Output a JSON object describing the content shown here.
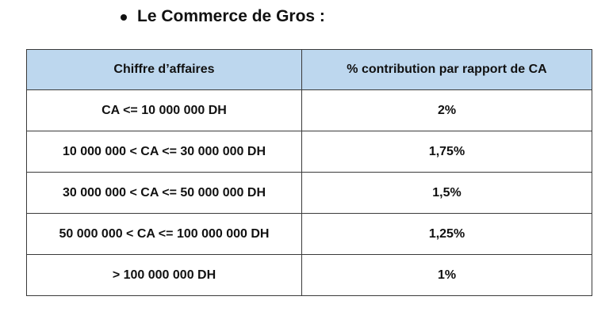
{
  "heading": "Le Commerce de Gros :",
  "table": {
    "headers": [
      "Chiffre d’affaires",
      "% contribution par rapport de CA"
    ],
    "rows": [
      [
        "CA <= 10 000 000 DH",
        "2%"
      ],
      [
        "10 000 000 < CA <= 30 000 000 DH",
        "1,75%"
      ],
      [
        "30 000 000 < CA <= 50 000 000 DH",
        "1,5%"
      ],
      [
        "50 000 000 < CA <= 100 000 000 DH",
        "1,25%"
      ],
      [
        "> 100 000 000 DH",
        "1%"
      ]
    ]
  },
  "colors": {
    "header_background": "#bdd7ee",
    "border": "#3a3a3a",
    "text": "#111111"
  }
}
